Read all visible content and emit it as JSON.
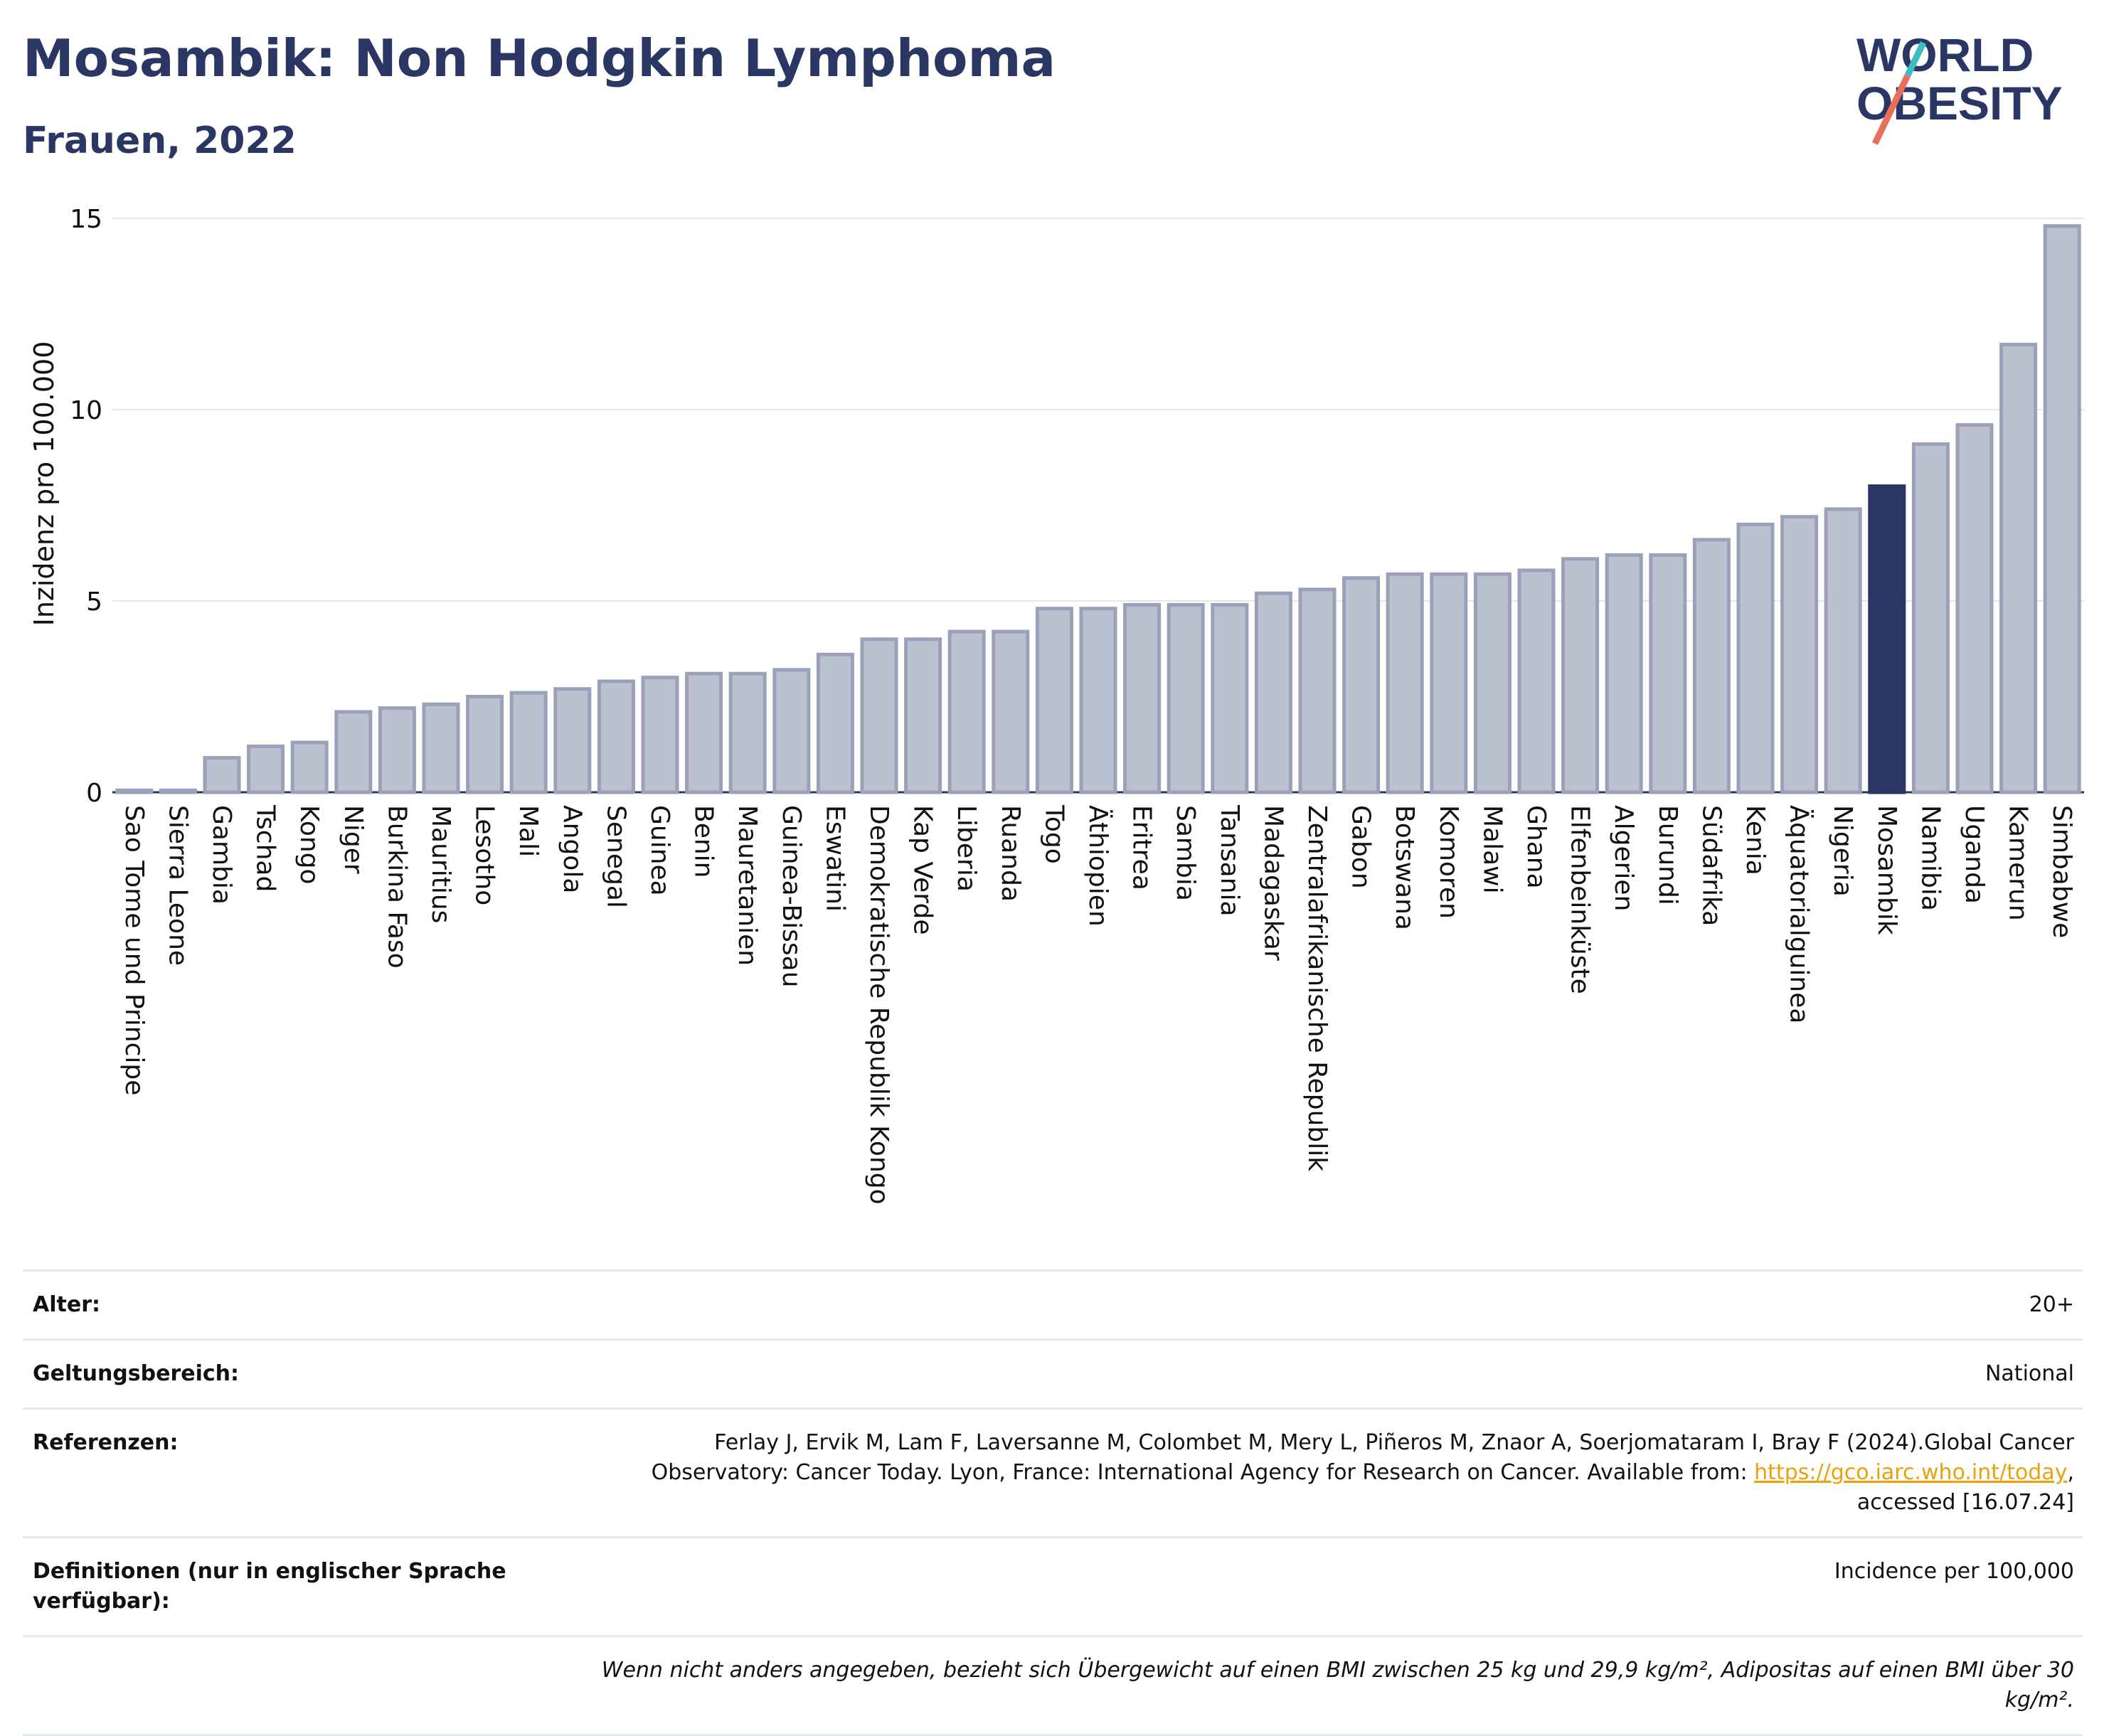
{
  "header": {
    "title": "Mosambik: Non Hodgkin Lymphoma",
    "subtitle": "Frauen, 2022"
  },
  "logo": {
    "line1": "WORLD",
    "line2": "OBESITY"
  },
  "colors": {
    "bar": "#bcc1d0",
    "bar_border": "#9aa1b8",
    "highlight": "#2a3664",
    "title": "#2a3664"
  },
  "chart_data": {
    "type": "bar",
    "ylabel": "Inzidenz pro 100.000",
    "ylim": [
      0,
      15
    ],
    "yticks": [
      0,
      5,
      10,
      15
    ],
    "grid": true,
    "highlight": "Mosambik",
    "categories": [
      "Sao Tome und Principe",
      "Sierra Leone",
      "Gambia",
      "Tschad",
      "Kongo",
      "Niger",
      "Burkina Faso",
      "Mauritius",
      "Lesotho",
      "Mali",
      "Angola",
      "Senegal",
      "Guinea",
      "Benin",
      "Mauretanien",
      "Guinea-Bissau",
      "Eswatini",
      "Demokratische Republik Kongo",
      "Kap Verde",
      "Liberia",
      "Ruanda",
      "Togo",
      "Äthiopien",
      "Eritrea",
      "Sambia",
      "Tansania",
      "Madagaskar",
      "Zentralafrikanische Republik",
      "Gabon",
      "Botswana",
      "Komoren",
      "Malawi",
      "Ghana",
      "Elfenbeinküste",
      "Algerien",
      "Burundi",
      "Südafrika",
      "Kenia",
      "Äquatorialguinea",
      "Nigeria",
      "Mosambik",
      "Namibia",
      "Uganda",
      "Kamerun",
      "Simbabwe"
    ],
    "values": [
      0.05,
      0.05,
      0.9,
      1.2,
      1.3,
      2.1,
      2.2,
      2.3,
      2.5,
      2.6,
      2.7,
      2.9,
      3.0,
      3.1,
      3.1,
      3.2,
      3.6,
      4.0,
      4.0,
      4.2,
      4.2,
      4.8,
      4.8,
      4.9,
      4.9,
      4.9,
      5.2,
      5.3,
      5.6,
      5.7,
      5.7,
      5.7,
      5.8,
      6.1,
      6.2,
      6.2,
      6.6,
      7.0,
      7.2,
      7.4,
      8.0,
      9.1,
      9.6,
      11.7,
      14.8
    ]
  },
  "meta": {
    "age_label": "Alter:",
    "age_value": "20+",
    "scope_label": "Geltungsbereich:",
    "scope_value": "National",
    "references_label": "Referenzen:",
    "references_text_1": "Ferlay J, Ervik M, Lam F, Laversanne M, Colombet M, Mery L, Piñeros M, Znaor A, Soerjomataram I, Bray F (2024).Global Cancer Observatory: Cancer Today. Lyon, France: International Agency for Research on Cancer. Available from: ",
    "references_link": "https://gco.iarc.who.int/today",
    "references_text_2": ", accessed [16.07.24]",
    "definitions_label": "Definitionen (nur in englischer Sprache verfügbar):",
    "definitions_value": "Incidence per 100,000",
    "footnote": "Wenn nicht anders angegeben, bezieht sich Übergewicht auf einen BMI zwischen 25 kg und 29,9 kg/m², Adipositas auf einen BMI über 30 kg/m²."
  }
}
